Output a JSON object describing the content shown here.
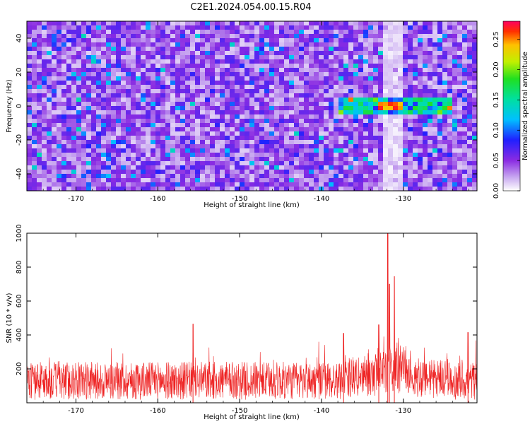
{
  "figure": {
    "title": "C2E1.2024.054.00.15.R04"
  },
  "chart_data": [
    {
      "type": "heatmap",
      "title": "",
      "xlabel": "Height of straight line (km)",
      "ylabel": "Frequency (Hz)",
      "xlim": [
        -176,
        -121
      ],
      "ylim": [
        -50,
        50
      ],
      "x_ticks": [
        -170,
        -160,
        -150,
        -140,
        -130
      ],
      "y_ticks": [
        -40,
        -20,
        0,
        20,
        40
      ],
      "colorbar": {
        "label": "Normalized spectral amplitude",
        "range": [
          0.0,
          0.28
        ],
        "ticks": [
          "0.00",
          "0.05",
          "0.10",
          "0.15",
          "0.20",
          "0.25"
        ],
        "tick_values": [
          0.0,
          0.05,
          0.1,
          0.15,
          0.2,
          0.25
        ]
      },
      "features": {
        "background_level": 0.04,
        "signal_band": {
          "x_range": [
            -138,
            -124
          ],
          "frequency": 0,
          "peak_x": -131.5,
          "peak_value": 0.27
        },
        "quiet_column_x": -131.5
      },
      "grid": false
    },
    {
      "type": "line",
      "title": "",
      "xlabel": "Height of straight line (km)",
      "ylabel": "SNR (10 * v/v)",
      "xlim": [
        -176,
        -121
      ],
      "ylim": [
        0,
        1000
      ],
      "x_ticks": [
        -170,
        -160,
        -150,
        -140,
        -130
      ],
      "y_ticks": [
        200,
        400,
        600,
        800,
        1000
      ],
      "series": [
        {
          "color": "#ee2222",
          "baseline": 130,
          "noise_amplitude": 150,
          "peaks": [
            {
              "x": -155.7,
              "y": 465
            },
            {
              "x": -137.3,
              "y": 410
            },
            {
              "x": -133.0,
              "y": 460
            },
            {
              "x": -131.9,
              "y": 1000
            },
            {
              "x": -131.7,
              "y": 700
            },
            {
              "x": -131.1,
              "y": 745
            },
            {
              "x": -122.1,
              "y": 415
            }
          ]
        }
      ],
      "grid": false
    }
  ]
}
